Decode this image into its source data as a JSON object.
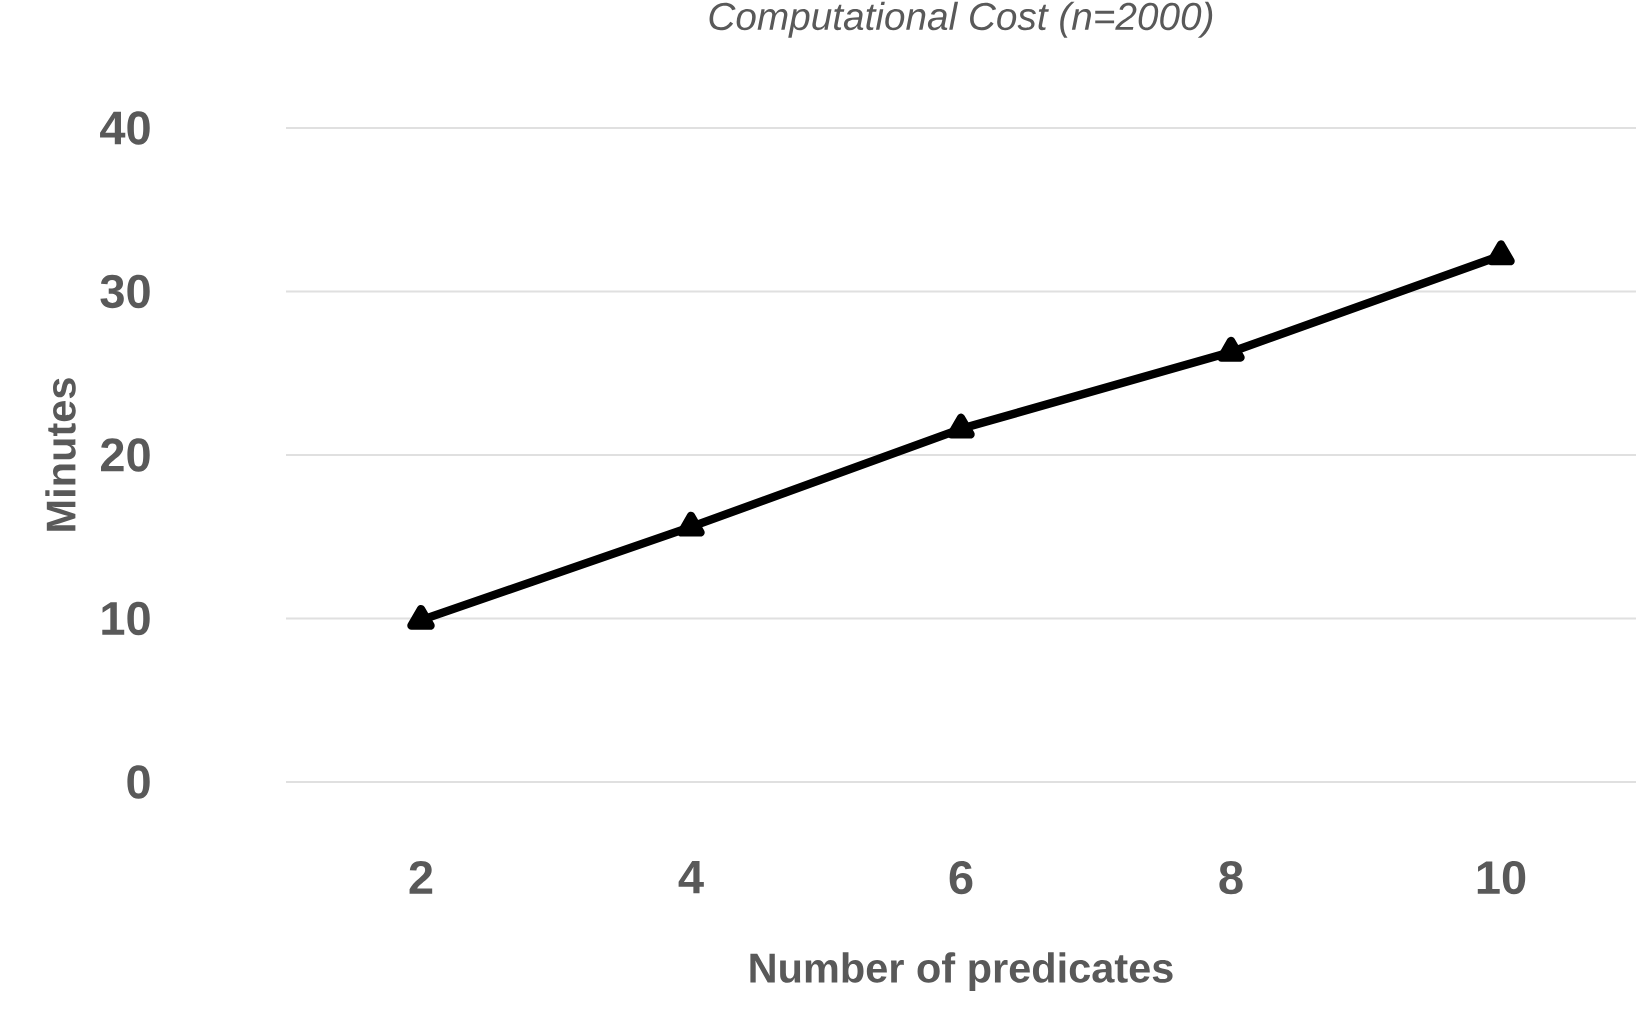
{
  "chart_data": {
    "type": "line",
    "title": "Computational Cost (n=2000)",
    "xlabel": "Number of predicates",
    "ylabel": "Minutes",
    "categories": [
      "2",
      "4",
      "6",
      "8",
      "10"
    ],
    "series": [
      {
        "color": "#000000",
        "values": [
          9.9,
          15.6,
          21.6,
          26.3,
          32.2
        ]
      }
    ],
    "ylim": [
      0,
      40
    ],
    "yticks": [
      0,
      10,
      20,
      30,
      40
    ],
    "grid": "y",
    "marker": "triangle",
    "line_style": "solid"
  }
}
